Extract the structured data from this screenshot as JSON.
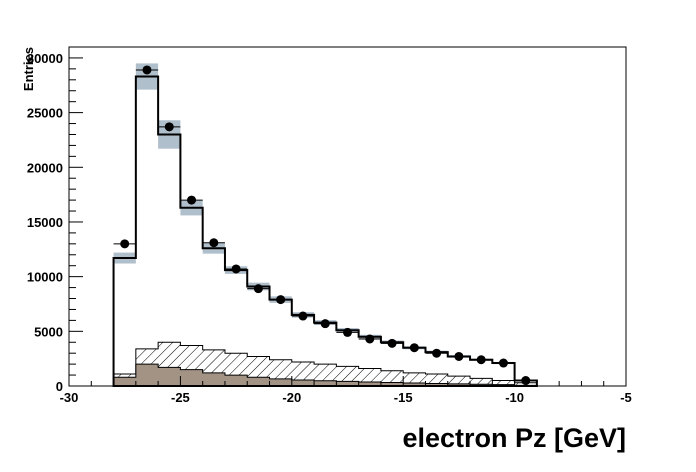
{
  "chart_data": {
    "type": "bar",
    "xlabel": "electron Pz [GeV]",
    "ylabel": "Entries",
    "xlim": [
      -30,
      -5
    ],
    "ylim": [
      0,
      31000
    ],
    "x_ticks": [
      -30,
      -25,
      -20,
      -15,
      -10,
      -5
    ],
    "x_tick_labels": [
      "-30",
      "-25",
      "-20",
      "-15",
      "-10",
      "-5"
    ],
    "y_ticks": [
      0,
      5000,
      10000,
      15000,
      20000,
      25000,
      30000
    ],
    "y_tick_labels": [
      "0",
      "5000",
      "10000",
      "15000",
      "20000",
      "25000",
      "30000"
    ],
    "bin_edges": [
      -28,
      -27,
      -26,
      -25,
      -24,
      -23,
      -22,
      -21,
      -20,
      -19,
      -18,
      -17,
      -16,
      -15,
      -14,
      -13,
      -12,
      -11,
      -10,
      -9
    ],
    "bin_centers": [
      -27.5,
      -26.5,
      -25.5,
      -24.5,
      -23.5,
      -22.5,
      -21.5,
      -20.5,
      -19.5,
      -18.5,
      -17.5,
      -16.5,
      -15.5,
      -14.5,
      -13.5,
      -12.5,
      -11.5,
      -10.5,
      -9.5
    ],
    "series": [
      {
        "role": "total-mc",
        "values": [
          11700,
          28300,
          23000,
          16300,
          12600,
          10600,
          9100,
          7900,
          6500,
          5800,
          5100,
          4500,
          4000,
          3500,
          3100,
          2700,
          2400,
          2100,
          500
        ],
        "uncertainty": [
          500,
          1200,
          1300,
          700,
          500,
          350,
          350,
          300,
          250,
          220,
          200,
          180,
          160,
          140,
          130,
          120,
          110,
          100,
          50
        ]
      },
      {
        "role": "background-hatched",
        "values": [
          1100,
          3400,
          4000,
          3700,
          3300,
          3000,
          2700,
          2400,
          2200,
          2000,
          1800,
          1600,
          1400,
          1200,
          1100,
          900,
          700,
          500,
          300
        ]
      },
      {
        "role": "background-filled",
        "values": [
          800,
          2000,
          1700,
          1500,
          1200,
          1000,
          800,
          650,
          550,
          480,
          420,
          370,
          320,
          270,
          230,
          190,
          160,
          130,
          60
        ]
      },
      {
        "role": "data-points",
        "values": [
          13000,
          28900,
          23700,
          17000,
          13100,
          10700,
          8900,
          7900,
          6400,
          5700,
          4900,
          4300,
          3900,
          3500,
          3000,
          2700,
          2400,
          2100,
          500
        ]
      }
    ],
    "colors": {
      "mc_uncertainty": "#b0bfcc",
      "filled_background": "#a39384",
      "hatch": "#000000",
      "line": "#000000"
    },
    "grid": false,
    "legend": "none"
  }
}
